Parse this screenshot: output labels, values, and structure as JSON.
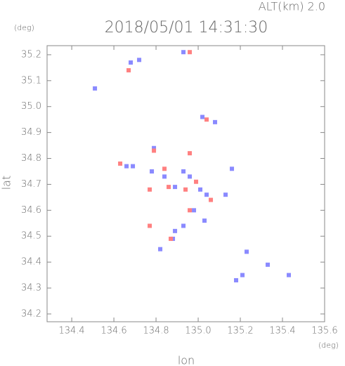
{
  "chart_data": {
    "type": "scatter",
    "title": "2018/05/01 14:31:30",
    "subtitle": "ALT(km) 2.0",
    "x_label": "lon",
    "y_label": "lat",
    "x_unit": "(deg)",
    "y_unit": "(deg)",
    "xlim": [
      134.283,
      135.6
    ],
    "ylim": [
      34.17,
      35.235
    ],
    "xticks": [
      134.4,
      134.6,
      134.8,
      {
        "value": 135.0,
        "label": "135.0"
      },
      135.2,
      135.4,
      135.6
    ],
    "yticks": [
      34.2,
      34.3,
      34.4,
      34.5,
      34.6,
      34.7,
      34.8,
      34.9,
      {
        "value": 35.0,
        "label": "35.0"
      },
      35.1,
      35.2
    ],
    "series": [
      {
        "color": "#8a8aff",
        "x": [
          134.51,
          134.68,
          134.72,
          134.93,
          135.02,
          135.08,
          134.66,
          134.69,
          134.78,
          134.84,
          134.93,
          134.96,
          134.89,
          135.01,
          135.04,
          134.89,
          134.88,
          134.93,
          134.79,
          135.23,
          135.21,
          135.18,
          135.33,
          135.43,
          135.16,
          135.03,
          134.98,
          135.13,
          134.82
        ],
        "y": [
          35.07,
          35.17,
          35.18,
          35.21,
          34.96,
          34.94,
          34.77,
          34.77,
          34.75,
          34.73,
          34.75,
          34.73,
          34.69,
          34.68,
          34.66,
          34.52,
          34.49,
          34.54,
          34.84,
          34.44,
          34.35,
          34.33,
          34.39,
          34.35,
          34.76,
          34.56,
          34.6,
          34.66,
          34.45
        ]
      },
      {
        "color": "#ff8080",
        "x": [
          134.67,
          134.96,
          135.04,
          134.79,
          134.84,
          134.86,
          134.94,
          134.99,
          134.77,
          134.87,
          134.96,
          134.77,
          135.06,
          134.63,
          134.96
        ],
        "y": [
          35.14,
          35.21,
          34.95,
          34.83,
          34.76,
          34.69,
          34.68,
          34.71,
          34.68,
          34.49,
          34.6,
          34.54,
          34.64,
          34.78,
          34.82
        ]
      }
    ]
  }
}
